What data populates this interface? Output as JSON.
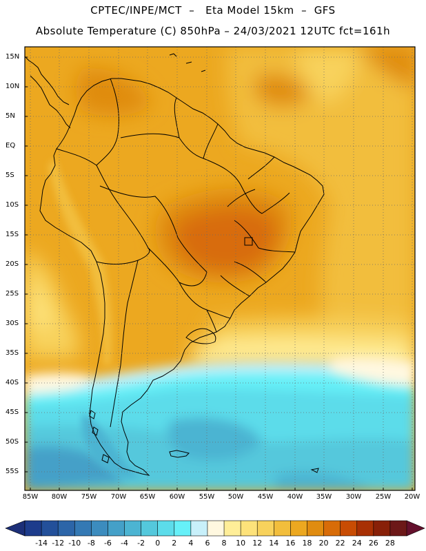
{
  "header": {
    "line1": "CPTEC/INPE/MCT  –   Eta Model 15km  –  GFS",
    "line2": "Absolute Temperature (C) 850hPa – 24/03/2021 12UTC fct=161h"
  },
  "latitude_labels": [
    "15N",
    "10N",
    "5N",
    "EQ",
    "5S",
    "10S",
    "15S",
    "20S",
    "25S",
    "30S",
    "35S",
    "40S",
    "45S",
    "50S",
    "55S"
  ],
  "longitude_labels": [
    "85W",
    "80W",
    "75W",
    "70W",
    "65W",
    "60W",
    "55W",
    "50W",
    "45W",
    "40W",
    "35W",
    "30W",
    "25W",
    "20W"
  ],
  "colorbar": {
    "labels": [
      "-14",
      "-12",
      "-10",
      "-8",
      "-6",
      "-4",
      "-2",
      "0",
      "2",
      "4",
      "6",
      "8",
      "10",
      "12",
      "14",
      "16",
      "18",
      "20",
      "22",
      "24",
      "26",
      "28"
    ],
    "colors": [
      "#1d3c8c",
      "#23509a",
      "#2c65a8",
      "#3479b4",
      "#3c8cbe",
      "#44a0c8",
      "#4cb4d2",
      "#54c8dc",
      "#5cdcea",
      "#66f0f8",
      "#c8f0fa",
      "#fff8e0",
      "#ffee98",
      "#fde27a",
      "#f8d25c",
      "#f2be3c",
      "#eca820",
      "#e08c10",
      "#d86c08",
      "#c84c04",
      "#a83004",
      "#882008",
      "#6c1818"
    ],
    "left_arrow_color": "#1c2f78",
    "right_arrow_color": "#64102c"
  }
}
